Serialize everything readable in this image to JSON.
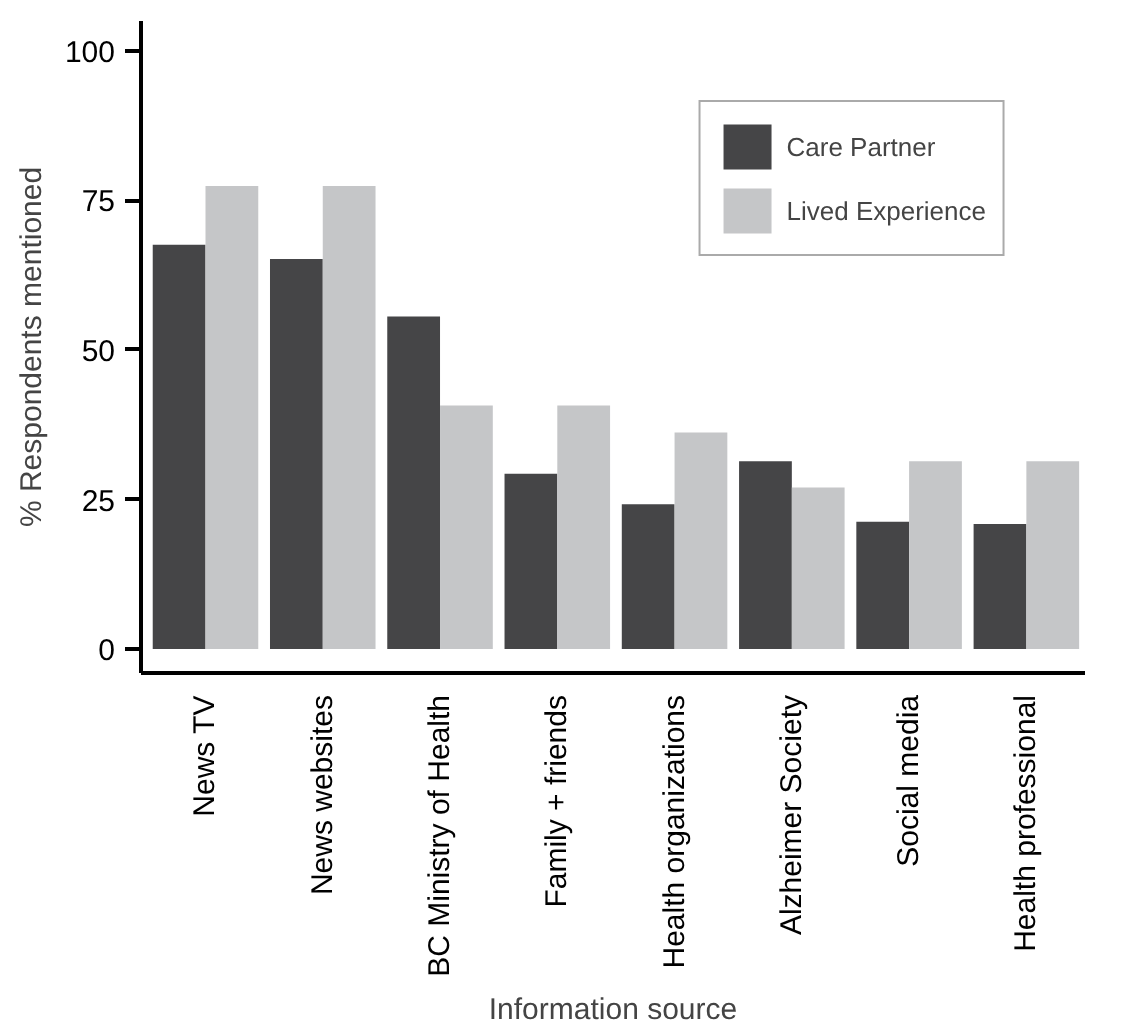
{
  "chart_data": {
    "type": "bar",
    "xlabel": "Information source",
    "ylabel": "% Respondents mentioned",
    "categories": [
      "News TV",
      "News websites",
      "BC Ministry of Health",
      "Family + friends",
      "Health organizations",
      "Alzheimer Society",
      "Social media",
      "Health professional"
    ],
    "series": [
      {
        "name": "Care Partner",
        "color": "#454547",
        "values": [
          67.6,
          65.2,
          55.6,
          29.3,
          24.2,
          31.4,
          21.3,
          20.9
        ]
      },
      {
        "name": "Lived Experience",
        "color": "#c5c6c8",
        "values": [
          77.4,
          77.4,
          40.7,
          40.7,
          36.2,
          27.0,
          31.4,
          31.4
        ]
      }
    ],
    "ylim": [
      -4,
      105
    ],
    "yticks": [
      0,
      25,
      50,
      75,
      100
    ],
    "grid": false,
    "legend": "top right"
  }
}
